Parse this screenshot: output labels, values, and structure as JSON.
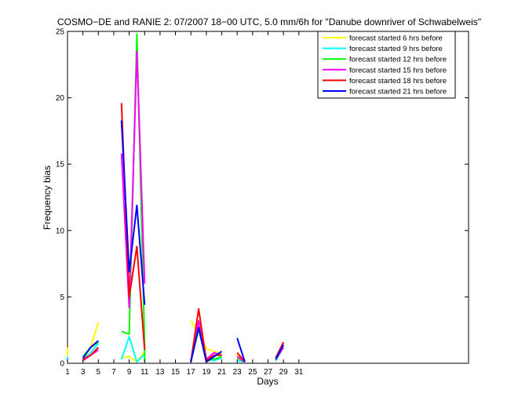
{
  "chart_data": {
    "type": "line",
    "title": "COSMO−DE and RANIE 2: 07/2007 18−00 UTC, 5.0 mm/6h for \"Danube downriver of Schwabelweis\"",
    "xlabel": "Days",
    "ylabel": "Frequency bias",
    "xlim": [
      1,
      53
    ],
    "ylim": [
      0,
      25
    ],
    "xticks": [
      1,
      3,
      5,
      7,
      9,
      11,
      13,
      15,
      17,
      19,
      21,
      23,
      25,
      27,
      29,
      31
    ],
    "yticks": [
      0,
      5,
      10,
      15,
      20,
      25
    ],
    "legend_position": "top-right",
    "grid": false,
    "series": [
      {
        "name": "forecast started 6 hrs before",
        "color": "#ffff00",
        "segments": [
          [
            [
              1,
              1.2
            ],
            [
              1,
              0.4
            ]
          ],
          [
            [
              3,
              0.3
            ],
            [
              4,
              1.2
            ],
            [
              5,
              3.1
            ]
          ],
          [
            [
              8,
              0.4
            ],
            [
              9,
              0.5
            ],
            [
              10,
              0.1
            ],
            [
              11,
              0.9
            ]
          ],
          [
            [
              17,
              3.2
            ],
            [
              18,
              2.3
            ],
            [
              19,
              1.1
            ],
            [
              20,
              0.9
            ],
            [
              21,
              0.7
            ]
          ],
          [
            [
              23,
              0.6
            ],
            [
              24,
              0.2
            ]
          ],
          [
            [
              28,
              0.3
            ],
            [
              29,
              1.3
            ]
          ]
        ]
      },
      {
        "name": "forecast started 9 hrs before",
        "color": "#00ffff",
        "segments": [
          [
            [
              1,
              0.5
            ],
            [
              1,
              0.2
            ]
          ],
          [
            [
              3,
              0.3
            ],
            [
              4,
              0.8
            ],
            [
              5,
              1.5
            ]
          ],
          [
            [
              8,
              0.3
            ],
            [
              9,
              2.0
            ],
            [
              10,
              0.1
            ],
            [
              11,
              0.7
            ]
          ],
          [
            [
              17,
              0.2
            ],
            [
              18,
              2.5
            ],
            [
              19,
              0.4
            ],
            [
              20,
              0.2
            ],
            [
              21,
              0.4
            ]
          ],
          [
            [
              23,
              0.2
            ],
            [
              24,
              0.1
            ]
          ],
          [
            [
              28,
              0.2
            ],
            [
              29,
              1.2
            ]
          ]
        ]
      },
      {
        "name": "forecast started 12 hrs before",
        "color": "#00ff00",
        "segments": [
          [
            [
              3,
              0.5
            ],
            [
              4,
              1.2
            ],
            [
              5,
              1.6
            ]
          ],
          [
            [
              8,
              2.4
            ],
            [
              9,
              2.2
            ],
            [
              10,
              24.8
            ],
            [
              11,
              1.4
            ],
            [
              11,
              0.1
            ]
          ],
          [
            [
              17,
              0.1
            ],
            [
              18,
              2.6
            ],
            [
              19,
              0.2
            ],
            [
              20,
              0.3
            ],
            [
              21,
              0.5
            ]
          ],
          [
            [
              23,
              0.4
            ],
            [
              24,
              0.1
            ]
          ],
          [
            [
              28,
              0.2
            ],
            [
              29,
              1.4
            ]
          ]
        ]
      },
      {
        "name": "forecast started 15 hrs before",
        "color": "#ff00ff",
        "segments": [
          [
            [
              3,
              0.2
            ],
            [
              4,
              0.6
            ],
            [
              5,
              1.0
            ]
          ],
          [
            [
              8,
              15.8
            ],
            [
              9,
              4.2
            ],
            [
              10,
              23.5
            ],
            [
              11,
              6.0
            ]
          ],
          [
            [
              17,
              0.1
            ],
            [
              18,
              3.2
            ],
            [
              19,
              0.3
            ],
            [
              20,
              0.8
            ],
            [
              21,
              0.6
            ]
          ],
          [
            [
              23,
              0.5
            ],
            [
              24,
              0.1
            ]
          ],
          [
            [
              28,
              0.3
            ],
            [
              29,
              1.2
            ]
          ]
        ]
      },
      {
        "name": "forecast started 18 hrs before",
        "color": "#ff0000",
        "segments": [
          [
            [
              3,
              0.3
            ],
            [
              4,
              0.6
            ],
            [
              5,
              1.2
            ]
          ],
          [
            [
              8,
              19.6
            ],
            [
              9,
              5.0
            ],
            [
              10,
              8.8
            ],
            [
              11,
              1.0
            ]
          ],
          [
            [
              17,
              0.1
            ],
            [
              18,
              4.1
            ],
            [
              19,
              0.2
            ],
            [
              20,
              0.6
            ],
            [
              21,
              0.6
            ]
          ],
          [
            [
              23,
              0.8
            ],
            [
              24,
              0.1
            ]
          ],
          [
            [
              28,
              0.4
            ],
            [
              29,
              1.6
            ]
          ]
        ]
      },
      {
        "name": "forecast started 21 hrs before",
        "color": "#0000ff",
        "segments": [
          [
            [
              3,
              0.4
            ],
            [
              4,
              1.2
            ],
            [
              5,
              1.7
            ]
          ],
          [
            [
              8,
              18.3
            ],
            [
              9,
              6.9
            ],
            [
              10,
              11.9
            ],
            [
              11,
              4.4
            ]
          ],
          [
            [
              17,
              0.1
            ],
            [
              18,
              2.7
            ],
            [
              19,
              0.1
            ],
            [
              20,
              0.5
            ],
            [
              21,
              0.9
            ]
          ],
          [
            [
              23,
              1.9
            ],
            [
              24,
              0.1
            ]
          ],
          [
            [
              28,
              0.3
            ],
            [
              29,
              1.4
            ]
          ]
        ]
      }
    ]
  }
}
